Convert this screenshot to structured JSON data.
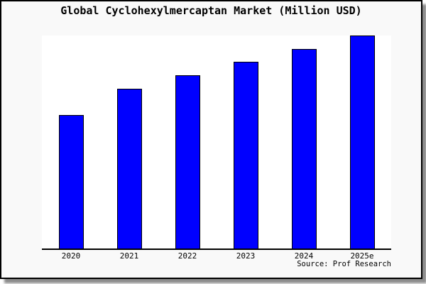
{
  "window": {
    "background_color": "#f9f9f9",
    "border_color": "#000000",
    "shadow_color": "#737373"
  },
  "chart": {
    "title": "Global Cyclohexylmercaptan Market (Million USD)",
    "source_note": "Source: Prof Research",
    "bar_color": "#0000ff",
    "bar_outline_color": "#000000",
    "plot_background_color": "#ffffff",
    "axis_color": "#000000"
  },
  "chart_data": {
    "type": "bar",
    "title": "Global Cyclohexylmercaptan Market (Million USD)",
    "categories": [
      "2020",
      "2021",
      "2022",
      "2023",
      "2024",
      "2025e"
    ],
    "values": [
      62.7,
      75.0,
      81.3,
      87.8,
      93.8,
      100.0
    ],
    "value_scale_note": "y-axis has no tick labels; values estimated from bar heights as an index with 2025e = 100",
    "xlabel": "",
    "ylabel": "",
    "ylim": [
      0,
      100
    ],
    "grid": false,
    "legend": false,
    "annotation": "Source: Prof Research"
  }
}
